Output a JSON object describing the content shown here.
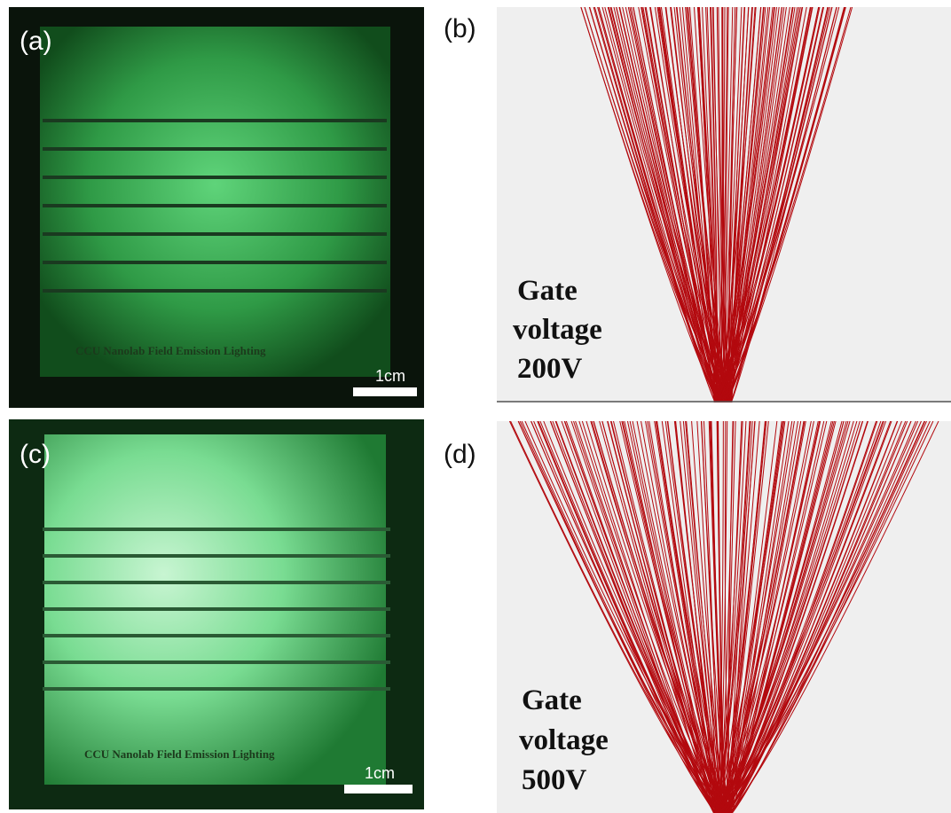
{
  "panels": [
    {
      "label": "(a)",
      "caption": "CCU Nanolab Field Emission Lighting",
      "scale_bar": "1cm"
    },
    {
      "label": "(b)",
      "annotation": [
        "Gate",
        "voltage",
        "200V"
      ]
    },
    {
      "label": "(c)",
      "caption": "CCU Nanolab Field Emission Lighting",
      "scale_bar": "1cm"
    },
    {
      "label": "(d)",
      "annotation": [
        "Gate",
        "voltage",
        "500V"
      ]
    }
  ]
}
